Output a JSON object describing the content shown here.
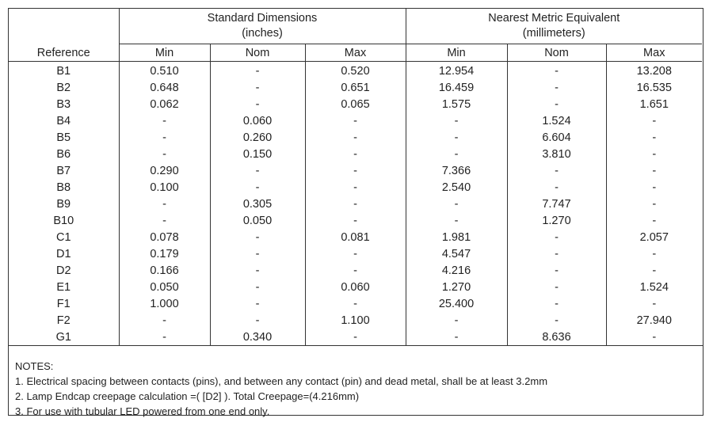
{
  "table": {
    "groups": [
      {
        "title": "Standard Dimensions",
        "unit": "(inches)"
      },
      {
        "title": "Nearest Metric Equivalent",
        "unit": "(millimeters)"
      }
    ],
    "reference_header": "Reference",
    "subheaders": [
      "Min",
      "Nom",
      "Max",
      "Min",
      "Nom",
      "Max"
    ],
    "rows": [
      [
        "B1",
        "0.510",
        "-",
        "0.520",
        "12.954",
        "-",
        "13.208"
      ],
      [
        "B2",
        "0.648",
        "-",
        "0.651",
        "16.459",
        "-",
        "16.535"
      ],
      [
        "B3",
        "0.062",
        "-",
        "0.065",
        "1.575",
        "-",
        "1.651"
      ],
      [
        "B4",
        "-",
        "0.060",
        "-",
        "-",
        "1.524",
        "-"
      ],
      [
        "B5",
        "-",
        "0.260",
        "-",
        "-",
        "6.604",
        "-"
      ],
      [
        "B6",
        "-",
        "0.150",
        "-",
        "-",
        "3.810",
        "-"
      ],
      [
        "B7",
        "0.290",
        "-",
        "-",
        "7.366",
        "-",
        "-"
      ],
      [
        "B8",
        "0.100",
        "-",
        "-",
        "2.540",
        "-",
        "-"
      ],
      [
        "B9",
        "-",
        "0.305",
        "-",
        "-",
        "7.747",
        "-"
      ],
      [
        "B10",
        "-",
        "0.050",
        "-",
        "-",
        "1.270",
        "-"
      ],
      [
        "C1",
        "0.078",
        "-",
        "0.081",
        "1.981",
        "-",
        "2.057"
      ],
      [
        "D1",
        "0.179",
        "-",
        "-",
        "4.547",
        "-",
        "-"
      ],
      [
        "D2",
        "0.166",
        "-",
        "-",
        "4.216",
        "-",
        "-"
      ],
      [
        "E1",
        "0.050",
        "-",
        "0.060",
        "1.270",
        "-",
        "1.524"
      ],
      [
        "F1",
        "1.000",
        "-",
        "-",
        "25.400",
        "-",
        "-"
      ],
      [
        "F2",
        "-",
        "-",
        "1.100",
        "-",
        "-",
        "27.940"
      ],
      [
        "G1",
        "-",
        "0.340",
        "-",
        "-",
        "8.636",
        "-"
      ]
    ]
  },
  "notes": {
    "title": "NOTES:",
    "items": [
      "1. Electrical spacing between contacts (pins), and between any contact (pin) and dead metal, shall be at least 3.2mm",
      "2. Lamp Endcap creepage calculation =( [D2] ). Total Creepage=(4.216mm)",
      "3. For use with tubular LED powered from one end only."
    ]
  }
}
